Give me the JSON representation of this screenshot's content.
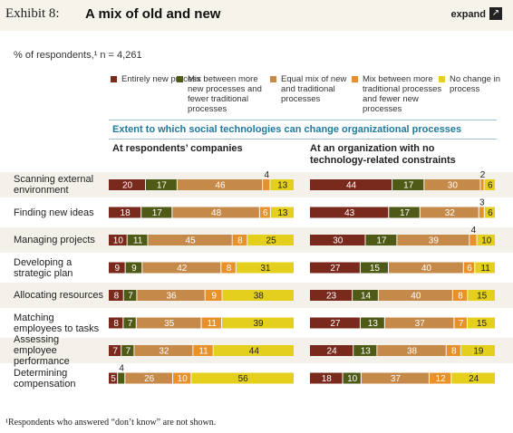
{
  "header": {
    "exhibit": "Exhibit 8:",
    "title": "A mix of old and new",
    "expand_label": "expand"
  },
  "respondents": "% of respondents,¹ n = 4,261",
  "footnote": "¹Respondents who answered “don’t know” are not shown.",
  "chart_data": {
    "type": "bar",
    "stacked": true,
    "orientation": "horizontal",
    "title": "Extent to which social technologies can change organizational processes",
    "categories": [
      "Scanning external environment",
      "Finding new ideas",
      "Managing projects",
      "Developing a strategic plan",
      "Allocating resources",
      "Matching employees to tasks",
      "Assessing employee performance",
      "Determining compensation"
    ],
    "segment_colors": [
      "#7a2a1c",
      "#4e5a16",
      "#c58a4a",
      "#e8902a",
      "#e3cf1c"
    ],
    "legend": [
      "Entirely new process",
      "Mix between more new processes and fewer traditional processes",
      "Equal mix of new and traditional processes",
      "Mix between more traditional processes and fewer new processes",
      "No change in process"
    ],
    "panels": [
      {
        "heading": "At respondents’ companies",
        "rows": [
          [
            20,
            17,
            46,
            4,
            13
          ],
          [
            18,
            17,
            48,
            6,
            13
          ],
          [
            10,
            11,
            45,
            8,
            25
          ],
          [
            9,
            9,
            42,
            8,
            31
          ],
          [
            8,
            7,
            36,
            9,
            38
          ],
          [
            8,
            7,
            35,
            11,
            39
          ],
          [
            7,
            7,
            32,
            11,
            44
          ],
          [
            5,
            4,
            26,
            10,
            56
          ]
        ]
      },
      {
        "heading": "At an organization with no technology-related constraints",
        "rows": [
          [
            44,
            17,
            30,
            2,
            6
          ],
          [
            43,
            17,
            32,
            3,
            6
          ],
          [
            30,
            17,
            39,
            4,
            10
          ],
          [
            27,
            15,
            40,
            6,
            11
          ],
          [
            23,
            14,
            40,
            8,
            15
          ],
          [
            27,
            13,
            37,
            7,
            15
          ],
          [
            24,
            13,
            38,
            8,
            19
          ],
          [
            18,
            10,
            37,
            12,
            24
          ]
        ]
      }
    ]
  }
}
